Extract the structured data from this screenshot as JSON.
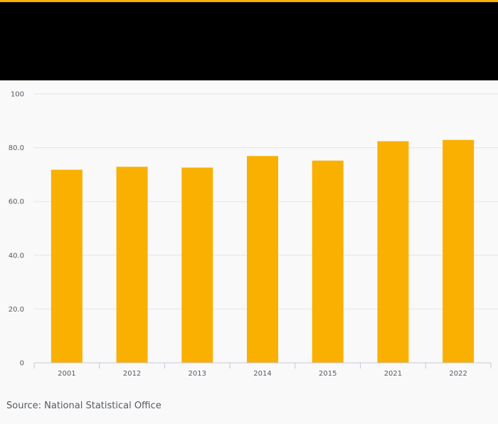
{
  "colors": {
    "accent": "#f9b000",
    "header": "#000000",
    "background": "#f9f9fa",
    "bar": "#f9b000",
    "grid": "#e4e4e8",
    "axis": "#c6c8d4",
    "text": "#555a63"
  },
  "chart_data": {
    "type": "bar",
    "categories": [
      "2001",
      "2012",
      "2013",
      "2014",
      "2015",
      "2021",
      "2022"
    ],
    "values": [
      71.8,
      72.9,
      72.6,
      76.9,
      75.2,
      82.4,
      82.9
    ],
    "ylim": [
      0,
      100
    ],
    "yticks": [
      0,
      20,
      40,
      60,
      80,
      100
    ],
    "ytick_labels": [
      "0",
      "20.0",
      "40.0",
      "60.0",
      "80.0",
      "100"
    ],
    "grid": true,
    "legend": "none"
  },
  "footer": {
    "source": "Source: National Statistical Office"
  }
}
